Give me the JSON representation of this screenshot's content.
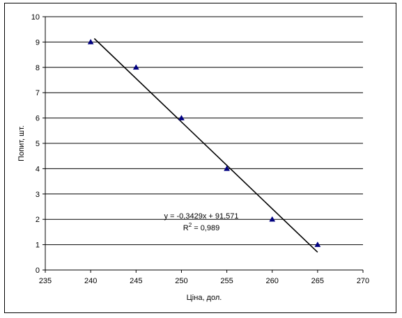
{
  "chart_data": {
    "type": "scatter",
    "xlabel": "Ціна, дол.",
    "ylabel": "Попит, шт.",
    "xlim": [
      235,
      270
    ],
    "ylim": [
      0,
      10
    ],
    "x_ticks": [
      "235",
      "240",
      "245",
      "250",
      "255",
      "260",
      "265",
      "270"
    ],
    "y_ticks": [
      "0",
      "1",
      "2",
      "3",
      "4",
      "5",
      "6",
      "7",
      "8",
      "9",
      "10"
    ],
    "grid": "horizontal",
    "marker": "triangle",
    "marker_color": "#000080",
    "points": [
      {
        "x": 240,
        "y": 9
      },
      {
        "x": 245,
        "y": 8
      },
      {
        "x": 250,
        "y": 6
      },
      {
        "x": 255,
        "y": 4
      },
      {
        "x": 260,
        "y": 2
      },
      {
        "x": 265,
        "y": 1
      }
    ],
    "trendline": {
      "type": "linear",
      "slope": -0.3429,
      "intercept": 91.571,
      "x_range": [
        240.4,
        265
      ],
      "equation_label": "y = -0,3429x + 91,571",
      "r2_prefix": "R",
      "r2_sup": "2",
      "r2_value": " = 0,989"
    }
  }
}
